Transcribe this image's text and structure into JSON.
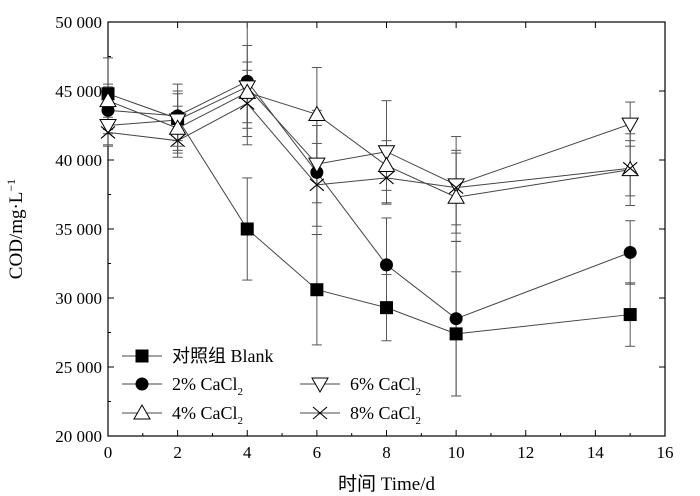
{
  "chart_data": {
    "type": "line",
    "xlabel": "时间 Time/d",
    "ylabel_main": "COD/mg·L",
    "ylabel_sup": "−1",
    "xlim": [
      0,
      16
    ],
    "ylim": [
      20000,
      50000
    ],
    "x_ticks": [
      0,
      2,
      4,
      6,
      8,
      10,
      12,
      14,
      16
    ],
    "y_ticks": [
      20000,
      25000,
      30000,
      35000,
      40000,
      45000,
      50000
    ],
    "y_tick_labels": [
      "20 000",
      "25 000",
      "30 000",
      "35 000",
      "40 000",
      "45 000",
      "50 000"
    ],
    "grid": false,
    "legend_position": "bottom-left",
    "series": [
      {
        "name": "对照组 Blank",
        "name_main": "对照组 Blank",
        "name_sub": "",
        "marker": "square-filled",
        "x": [
          0,
          2,
          4,
          6,
          8,
          10,
          15
        ],
        "y": [
          44800,
          43000,
          35000,
          30600,
          29300,
          27400,
          28800
        ],
        "err": [
          2600,
          2500,
          3700,
          4000,
          2400,
          4500,
          2300
        ]
      },
      {
        "name": "2% CaCl2",
        "name_main": "2% CaCl",
        "name_sub": "2",
        "marker": "circle-filled",
        "x": [
          0,
          2,
          4,
          6,
          8,
          10,
          15
        ],
        "y": [
          43600,
          43200,
          45700,
          39100,
          32400,
          28500,
          33300
        ],
        "err": [
          1700,
          1800,
          4600,
          4500,
          3400,
          5600,
          2300
        ]
      },
      {
        "name": "6% CaCl2",
        "name_main": "6% CaCl",
        "name_sub": "2",
        "marker": "triangle-down-open",
        "x": [
          0,
          2,
          4,
          6,
          8,
          10,
          15
        ],
        "y": [
          42500,
          42900,
          45300,
          39700,
          40600,
          38200,
          42600
        ],
        "err": [
          1500,
          1900,
          3000,
          2800,
          3700,
          3500,
          1600
        ]
      },
      {
        "name": "4% CaCl2",
        "name_main": "4% CaCl",
        "name_sub": "2",
        "marker": "triangle-up-open",
        "x": [
          0,
          2,
          4,
          6,
          8,
          10,
          15
        ],
        "y": [
          44300,
          42300,
          44900,
          43300,
          39600,
          37300,
          39300
        ],
        "err": [
          1200,
          1600,
          2200,
          3400,
          1800,
          3200,
          2600
        ]
      },
      {
        "name": "8% CaCl2",
        "name_main": "8% CaCl",
        "name_sub": "2",
        "marker": "x",
        "x": [
          0,
          2,
          4,
          6,
          8,
          10,
          15
        ],
        "y": [
          42000,
          41400,
          44100,
          38200,
          38700,
          38000,
          39400
        ],
        "err": [
          900,
          1200,
          2400,
          3000,
          1900,
          2700,
          2000
        ]
      }
    ]
  }
}
